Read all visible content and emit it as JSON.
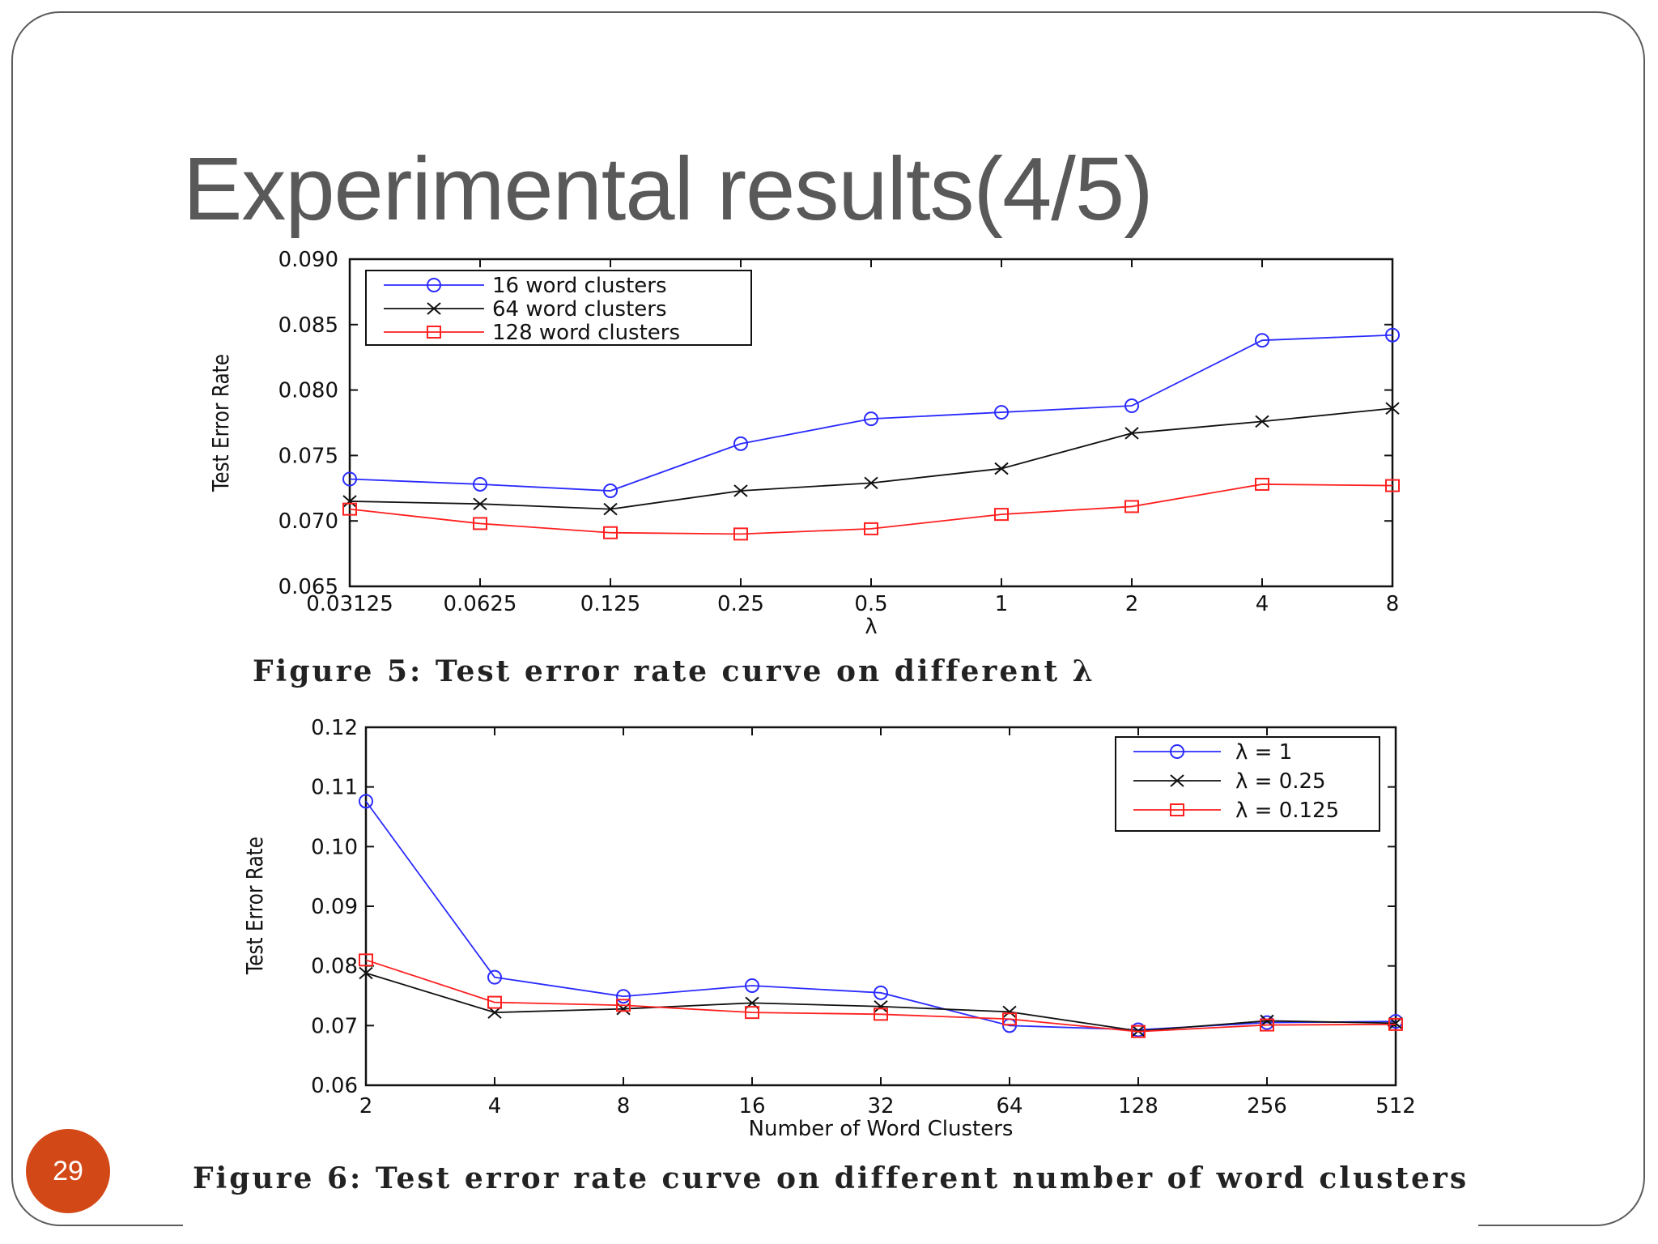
{
  "slide": {
    "title": "Experimental results(4/5)",
    "number": "29",
    "caption_1": "Figure 5: Test error rate curve on different λ",
    "caption_2": "Figure 6: Test error rate curve on different number of word clusters"
  },
  "chart_data": [
    {
      "type": "line",
      "title": "",
      "xlabel": "λ",
      "ylabel": "Test Error Rate",
      "categories": [
        "0.03125",
        "0.0625",
        "0.125",
        "0.25",
        "0.5",
        "1",
        "2",
        "4",
        "8"
      ],
      "ylim": [
        0.065,
        0.09
      ],
      "yticks": [
        0.065,
        0.07,
        0.075,
        0.08,
        0.085,
        0.09
      ],
      "ytick_labels": [
        "0.065",
        "0.070",
        "0.075",
        "0.080",
        "0.085",
        "0.090"
      ],
      "legend_position": "top-left",
      "series": [
        {
          "name": "16 word clusters",
          "color": "#2b2bff",
          "marker": "circle",
          "values": [
            0.0732,
            0.0728,
            0.0723,
            0.0759,
            0.0778,
            0.0783,
            0.0788,
            0.0838,
            0.0842
          ]
        },
        {
          "name": "64 word clusters",
          "color": "#111111",
          "marker": "x",
          "values": [
            0.0715,
            0.0713,
            0.0709,
            0.0723,
            0.0729,
            0.074,
            0.0767,
            0.0776,
            0.0786
          ]
        },
        {
          "name": "128 word clusters",
          "color": "#ff2020",
          "marker": "square",
          "values": [
            0.0709,
            0.0698,
            0.0691,
            0.069,
            0.0694,
            0.0705,
            0.0711,
            0.0728,
            0.0727
          ]
        }
      ]
    },
    {
      "type": "line",
      "title": "",
      "xlabel": "Number of Word Clusters",
      "ylabel": "Test Error Rate",
      "categories": [
        "2",
        "4",
        "8",
        "16",
        "32",
        "64",
        "128",
        "256",
        "512"
      ],
      "ylim": [
        0.06,
        0.12
      ],
      "yticks": [
        0.06,
        0.07,
        0.08,
        0.09,
        0.1,
        0.11,
        0.12
      ],
      "ytick_labels": [
        "0.06",
        "0.07",
        "0.08",
        "0.09",
        "0.10",
        "0.11",
        "0.12"
      ],
      "legend_position": "top-right",
      "series": [
        {
          "name": "λ = 1",
          "color": "#2b2bff",
          "marker": "circle",
          "values": [
            0.1076,
            0.0781,
            0.0749,
            0.0767,
            0.0755,
            0.07,
            0.0693,
            0.0705,
            0.0707
          ]
        },
        {
          "name": "λ = 0.25",
          "color": "#111111",
          "marker": "x",
          "values": [
            0.0788,
            0.0722,
            0.0728,
            0.0738,
            0.0732,
            0.0723,
            0.0691,
            0.0708,
            0.0704
          ]
        },
        {
          "name": "λ = 0.125",
          "color": "#ff2020",
          "marker": "square",
          "values": [
            0.081,
            0.0739,
            0.0734,
            0.0722,
            0.0719,
            0.0711,
            0.069,
            0.0701,
            0.0702
          ]
        }
      ]
    }
  ]
}
